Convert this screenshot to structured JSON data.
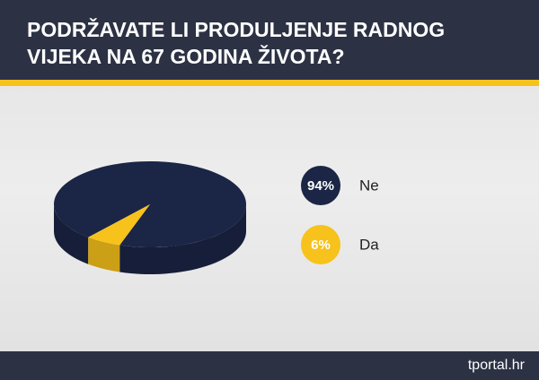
{
  "chart_data": {
    "type": "pie",
    "title": "PODRŽAVATE LI PRODULJENJE RADNOG VIJEKA NA 67 GODINA ŽIVOTA?",
    "categories": [
      "Ne",
      "Da"
    ],
    "values": [
      94,
      6
    ],
    "value_labels": [
      "94%",
      "6%"
    ],
    "colors": [
      "#1b2545",
      "#f7c21b"
    ]
  },
  "footer": {
    "brand": "tportal.hr"
  }
}
